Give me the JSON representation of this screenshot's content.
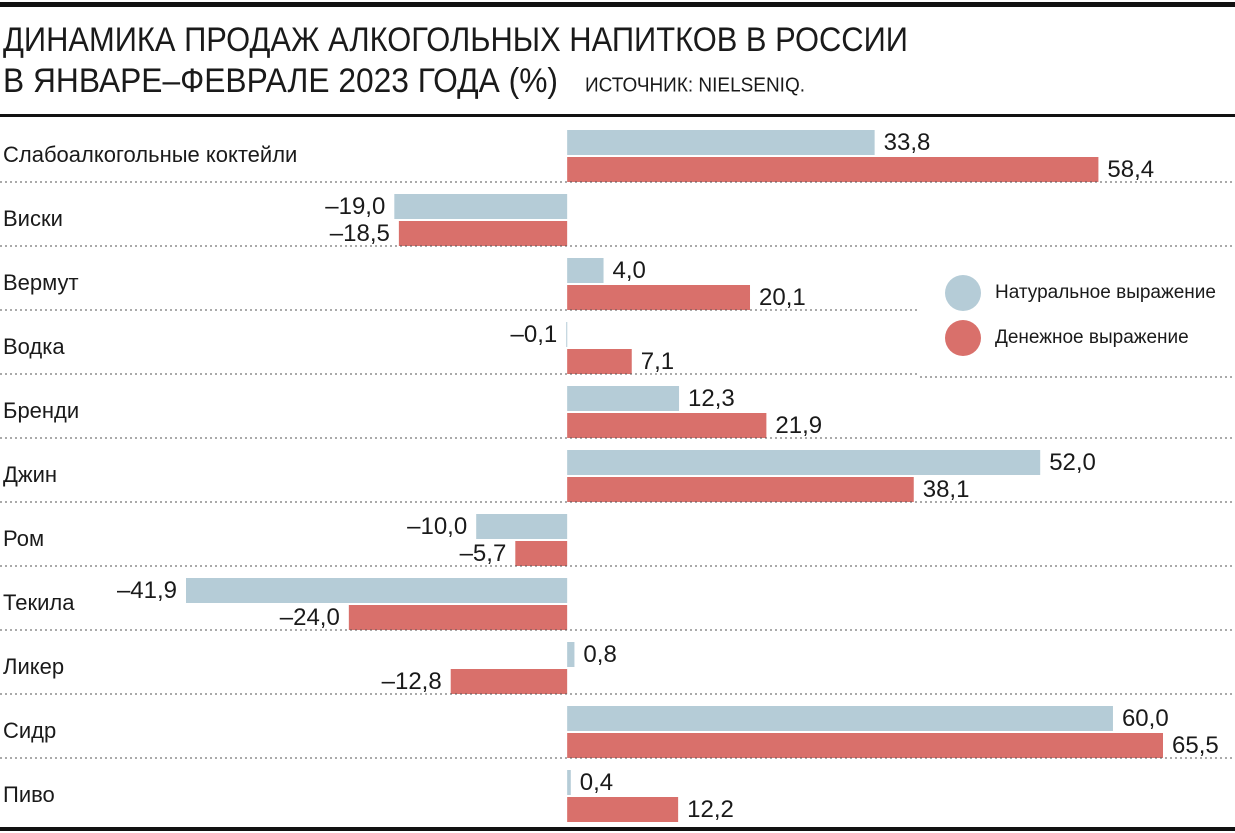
{
  "chart_data": {
    "type": "bar",
    "orientation": "horizontal",
    "title": [
      "ДИНАМИКА ПРОДАЖ АЛКОГОЛЬНЫХ НАПИТКОВ В РОССИИ",
      "В ЯНВАРЕ–ФЕВРАЛЕ 2023 ГОДА (%)"
    ],
    "source": "ИСТОЧНИК: NIELSENIQ.",
    "categories": [
      "Слабоалкогольные коктейли",
      "Виски",
      "Вермут",
      "Водка",
      "Бренди",
      "Джин",
      "Ром",
      "Текила",
      "Ликер",
      "Сидр",
      "Пиво"
    ],
    "series": [
      {
        "name": "Натуральное выражение",
        "color": "#b5ccd7",
        "values": [
          33.8,
          -19.0,
          4.0,
          -0.1,
          12.3,
          52.0,
          -10.0,
          -41.9,
          0.8,
          60.0,
          0.4
        ],
        "value_labels": [
          "33,8",
          "–19,0",
          "4,0",
          "–0,1",
          "12,3",
          "52,0",
          "–10,0",
          "–41,9",
          "0,8",
          "60,0",
          "0,4"
        ]
      },
      {
        "name": "Денежное выражение",
        "color": "#d9706b",
        "values": [
          58.4,
          -18.5,
          20.1,
          7.1,
          21.9,
          38.1,
          -5.7,
          -24.0,
          -12.8,
          65.5,
          12.2
        ],
        "value_labels": [
          "58,4",
          "–18,5",
          "20,1",
          "7,1",
          "21,9",
          "38,1",
          "–5,7",
          "–24,0",
          "–12,8",
          "65,5",
          "12,2"
        ]
      }
    ]
  }
}
